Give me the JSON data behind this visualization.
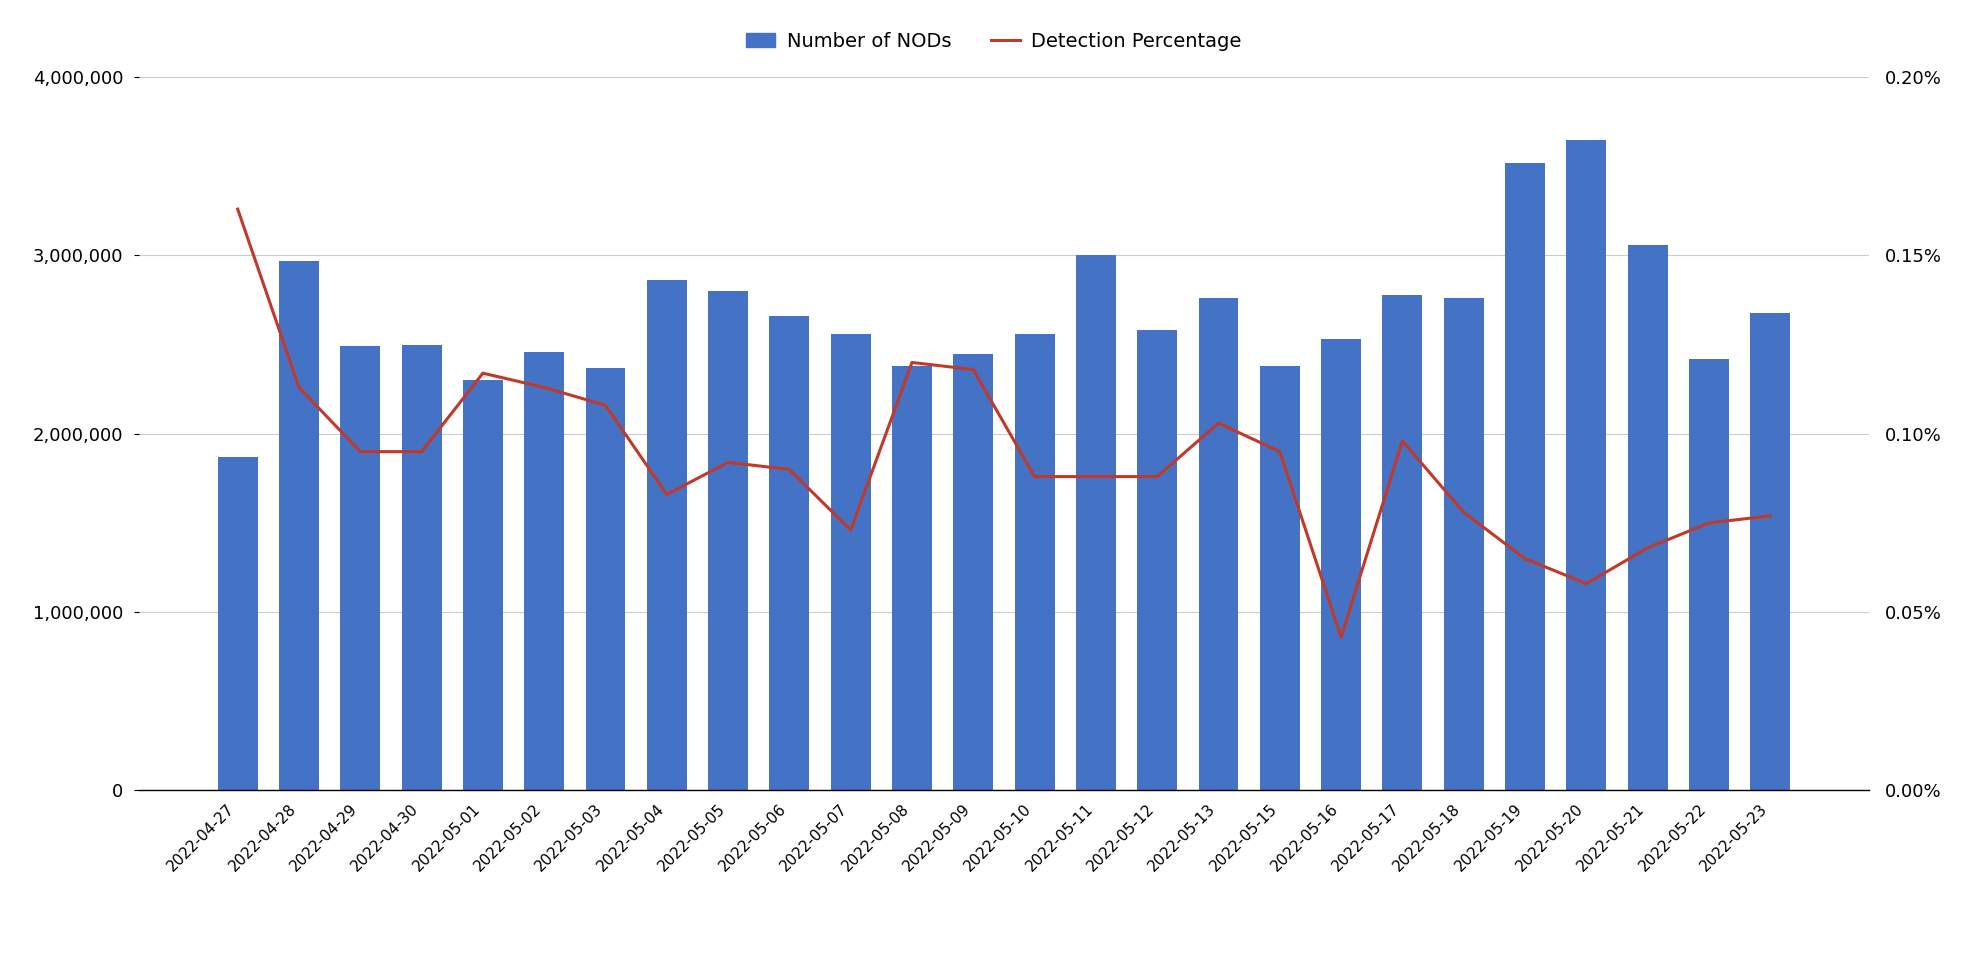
{
  "dates": [
    "2022-04-27",
    "2022-04-28",
    "2022-04-29",
    "2022-04-30",
    "2022-05-01",
    "2022-05-02",
    "2022-05-03",
    "2022-05-04",
    "2022-05-05",
    "2022-05-06",
    "2022-05-07",
    "2022-05-08",
    "2022-05-09",
    "2022-05-10",
    "2022-05-11",
    "2022-05-12",
    "2022-05-13",
    "2022-05-15",
    "2022-05-16",
    "2022-05-17",
    "2022-05-18",
    "2022-05-19",
    "2022-05-20",
    "2022-05-21",
    "2022-05-22",
    "2022-05-23"
  ],
  "nod_values": [
    1870000,
    2970000,
    2490000,
    2500000,
    2300000,
    2460000,
    2370000,
    2860000,
    2800000,
    2660000,
    2560000,
    2380000,
    2450000,
    2560000,
    3000000,
    2580000,
    2760000,
    2380000,
    2530000,
    2780000,
    2760000,
    3520000,
    3650000,
    3060000,
    2420000,
    2680000
  ],
  "det_pct": [
    0.00163,
    0.00113,
    0.00095,
    0.00095,
    0.00117,
    0.00113,
    0.00108,
    0.00083,
    0.00092,
    0.0009,
    0.00073,
    0.0012,
    0.00118,
    0.00088,
    0.00088,
    0.00088,
    0.00103,
    0.00095,
    0.00043,
    0.00098,
    0.00078,
    0.00065,
    0.00058,
    0.00068,
    0.00075,
    0.00077
  ],
  "bar_color": "#4472C4",
  "line_color": "#C0392B",
  "ylim_left": [
    0,
    4000000
  ],
  "ylim_right": [
    0.0,
    0.002
  ],
  "yticks_left": [
    0,
    1000000,
    2000000,
    3000000,
    4000000
  ],
  "yticks_right": [
    0.0,
    0.0005,
    0.001,
    0.0015,
    0.002
  ],
  "ytick_labels_right": [
    "0.00%",
    "0.05%",
    "0.10%",
    "0.15%",
    "0.20%"
  ],
  "legend_bar_label": "Number of NODs",
  "legend_line_label": "Detection Percentage",
  "background_color": "#FFFFFF",
  "grid_color": "#CCCCCC"
}
